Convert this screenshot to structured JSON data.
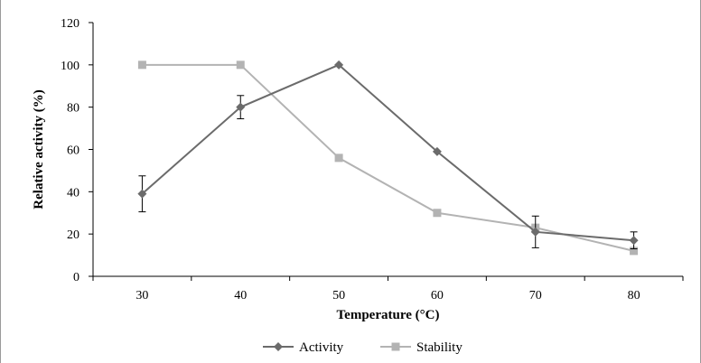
{
  "chart_data": {
    "type": "line",
    "xlabel": "Temperature (°C)",
    "ylabel": "Relative activity (%)",
    "x": [
      30,
      40,
      50,
      60,
      70,
      80
    ],
    "xlim": [
      25,
      85
    ],
    "ylim": [
      0,
      120
    ],
    "yticks": [
      0,
      20,
      40,
      60,
      80,
      100,
      120
    ],
    "grid": false,
    "legend_position": "bottom",
    "series": [
      {
        "name": "Activity",
        "marker": "diamond",
        "color": "#6b6b6b",
        "values": [
          39,
          80,
          100,
          59,
          21,
          17
        ],
        "error": [
          8.5,
          5.5,
          0,
          0,
          7.5,
          4
        ]
      },
      {
        "name": "Stability",
        "marker": "square",
        "color": "#b3b3b3",
        "values": [
          100,
          100,
          56,
          30,
          23,
          12
        ],
        "error": [
          0,
          0,
          0,
          0,
          0,
          0
        ]
      }
    ]
  }
}
